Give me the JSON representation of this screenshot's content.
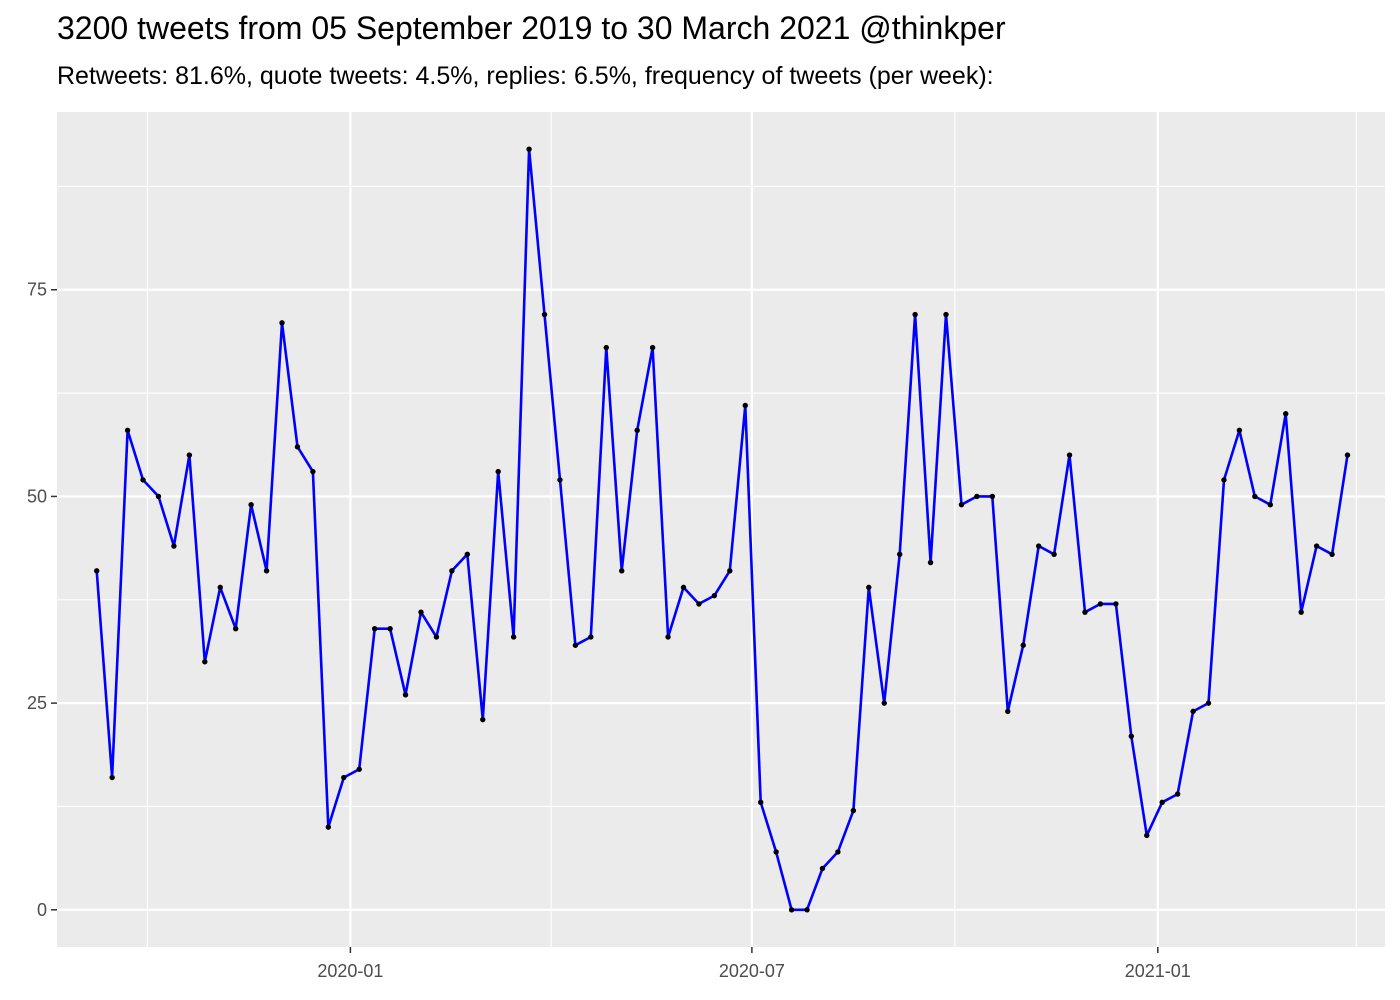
{
  "chart_data": {
    "type": "line",
    "title": "3200 tweets from 05 September 2019 to 30 March 2021 @thinkper",
    "subtitle": "Retweets: 81.6%, quote tweets: 4.5%, replies: 6.5%, frequency of tweets (per week):",
    "xlabel": "",
    "ylabel": "",
    "x_type": "date",
    "x_start": "2019-09-08",
    "x_step_days": 7,
    "xlim": [
      "2019-08-21",
      "2021-04-14"
    ],
    "ylim": [
      -4.5,
      96.5
    ],
    "grid": true,
    "line_color": "#0000ff",
    "point_color": "#000000",
    "panel_background": "#ebebeb",
    "y_ticks": [
      0,
      25,
      50,
      75
    ],
    "y_minor_ticks": [
      12.5,
      37.5,
      62.5,
      87.5
    ],
    "x_ticks": [
      {
        "date": "2020-01-01",
        "label": "2020-01"
      },
      {
        "date": "2020-07-01",
        "label": "2020-07"
      },
      {
        "date": "2021-01-01",
        "label": "2021-01"
      }
    ],
    "x_minor_ticks": [
      "2019-10-01",
      "2020-04-01",
      "2020-10-01",
      "2021-04-01"
    ],
    "values": [
      41,
      16,
      58,
      52,
      50,
      44,
      55,
      30,
      39,
      34,
      49,
      41,
      71,
      56,
      53,
      10,
      16,
      17,
      34,
      34,
      26,
      36,
      33,
      41,
      43,
      23,
      53,
      33,
      92,
      72,
      52,
      32,
      33,
      68,
      41,
      58,
      68,
      33,
      39,
      37,
      38,
      41,
      61,
      13,
      7,
      0,
      0,
      5,
      7,
      12,
      39,
      25,
      43,
      72,
      42,
      72,
      49,
      50,
      50,
      24,
      32,
      44,
      43,
      55,
      36,
      37,
      37,
      21,
      9,
      13,
      14,
      24,
      25,
      52,
      58,
      50,
      49,
      60,
      36,
      44,
      43,
      55
    ]
  }
}
